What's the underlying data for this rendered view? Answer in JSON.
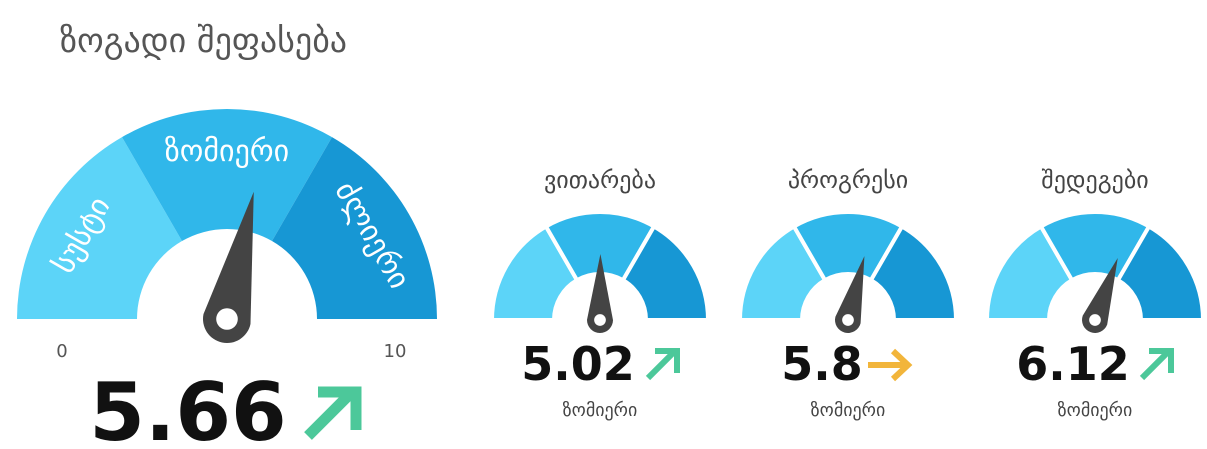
{
  "title": "ზოგადი შეფასება",
  "main": {
    "segments": [
      "სუსტი",
      "ზომიერი",
      "ძლიერი"
    ],
    "min": 0,
    "max": 10,
    "value": 5.66
  },
  "gauges": [
    {
      "title": "ვითარება",
      "value": 5.02,
      "label": "ზომიერი"
    },
    {
      "title": "პროგრესი",
      "value": 5.8,
      "label": "ზომიერი"
    },
    {
      "title": "შედეგები",
      "value": 6.12,
      "label": "ზომიერი"
    }
  ]
}
